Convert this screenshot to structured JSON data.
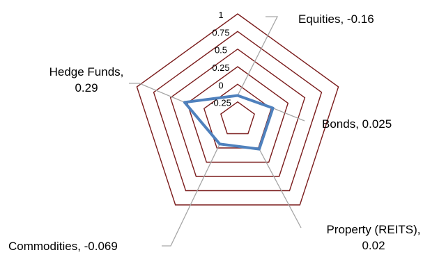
{
  "chart_data": {
    "type": "radar",
    "title": "",
    "r_ticks": [
      "-0.25",
      "0",
      "0.25",
      "0.5",
      "0.75",
      "1"
    ],
    "r_range": [
      -0.5,
      1
    ],
    "axes": [
      {
        "name": "Equities",
        "value": -0.16,
        "label_lines": [
          "Equities, -0.16"
        ]
      },
      {
        "name": "Bonds",
        "value": 0.025,
        "label_lines": [
          "Bonds, 0.025"
        ]
      },
      {
        "name": "Property (REITS)",
        "value": 0.02,
        "label_lines": [
          "Property (REITS),",
          "0.02"
        ]
      },
      {
        "name": "Commodities",
        "value": -0.069,
        "label_lines": [
          "Commodities, -0.069"
        ]
      },
      {
        "name": "Hedge Funds",
        "value": 0.29,
        "label_lines": [
          "Hedge Funds,",
          "0.29"
        ]
      }
    ],
    "colors": {
      "grid": "#7B1C1C",
      "series": "#4F81BD",
      "leader": "#A6A6A6"
    }
  }
}
